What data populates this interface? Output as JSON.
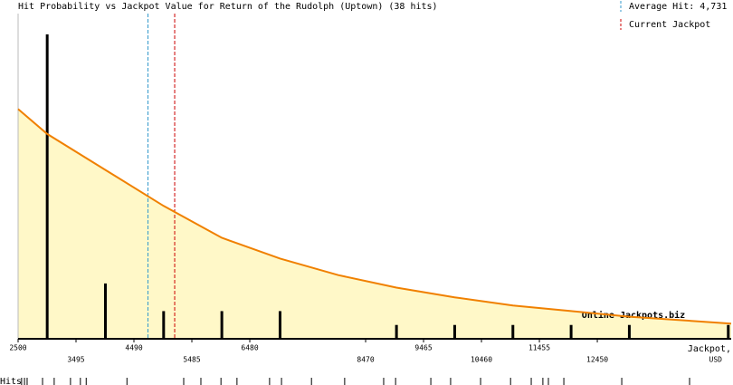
{
  "chart_data": {
    "type": "bar",
    "title": "Hit Probability vs Jackpot Value for Return of the Rudolph (Uptown) (38 hits)",
    "x_label_lines": [
      "Jackpot,",
      "USD"
    ],
    "xlim": [
      2500,
      14750
    ],
    "ylim": [
      0,
      23.5
    ],
    "xticks": [
      2500,
      3495,
      4490,
      5485,
      6480,
      8470,
      9465,
      10460,
      11455,
      12450
    ],
    "x": [
      3000,
      4000,
      5000,
      6000,
      7000,
      9000,
      10000,
      11000,
      12000,
      13000,
      14700
    ],
    "values": [
      22,
      4,
      2,
      2,
      2,
      1,
      1,
      1,
      1,
      1,
      1
    ],
    "color": "#000000",
    "curve": {
      "color": "#f08000",
      "fill": "#fff8c8",
      "x": [
        2500,
        3000,
        4000,
        5000,
        6000,
        7000,
        8000,
        9000,
        10000,
        11000,
        12000,
        13000,
        14750
      ],
      "values": [
        16.6,
        14.8,
        12.2,
        9.6,
        7.3,
        5.8,
        4.6,
        3.7,
        3.0,
        2.4,
        2.0,
        1.6,
        1.1
      ]
    },
    "reference_lines": [
      {
        "label": "Average Hit: 4,731",
        "value": 4731,
        "color": "#3399cc"
      },
      {
        "label": "Current Jackpot",
        "value": 5190,
        "color": "#cc0000"
      }
    ],
    "watermark": "Online Jackpots.biz",
    "rug_label": "Hits",
    "rug": [
      2560,
      2610,
      2655,
      2920,
      3120,
      3400,
      3570,
      3670,
      4370,
      5345,
      5640,
      5985,
      6260,
      6820,
      7025,
      7540,
      8110,
      8780,
      8985,
      9590,
      9930,
      10445,
      10960,
      11315,
      11515,
      11610,
      11875,
      12870,
      14035
    ]
  }
}
